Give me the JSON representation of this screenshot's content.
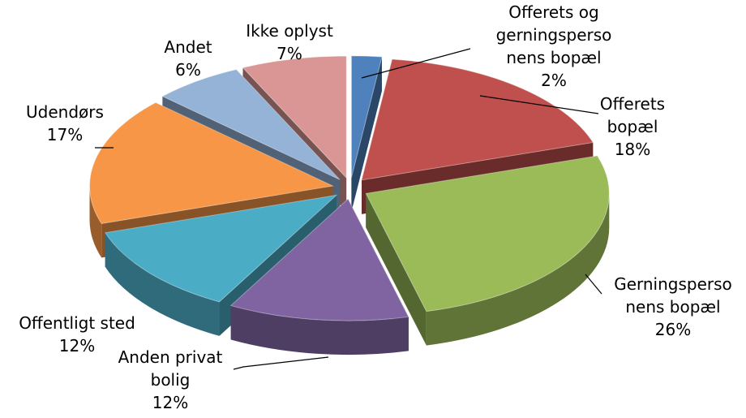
{
  "chart_data": {
    "type": "pie3d",
    "categories": [
      [
        "Offerets og",
        "gerningsperso",
        "nens bopæl"
      ],
      [
        "Offerets",
        "bopæl"
      ],
      [
        "Gerningsperso",
        "nens bopæl"
      ],
      [
        "Anden privat",
        "bolig"
      ],
      [
        "Offentligt sted"
      ],
      [
        "Udendørs"
      ],
      [
        "Andet"
      ],
      [
        "Ikke oplyst"
      ]
    ],
    "values": [
      2,
      18,
      26,
      12,
      12,
      17,
      6,
      7
    ],
    "value_labels": [
      "2%",
      "18%",
      "26%",
      "12%",
      "12%",
      "17%",
      "6%",
      "7%"
    ],
    "colors": [
      "#4f81bd",
      "#c0504d",
      "#9bbb59",
      "#8064a2",
      "#4bacc6",
      "#f79646",
      "#95b3d7",
      "#d99694"
    ]
  }
}
